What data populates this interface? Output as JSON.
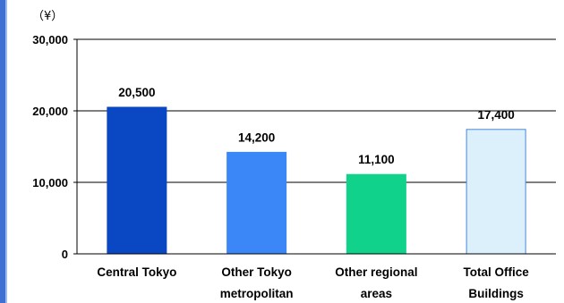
{
  "chart_data": {
    "type": "bar",
    "unit_label": "（¥）",
    "categories": [
      [
        "Central Tokyo"
      ],
      [
        "Other Tokyo",
        "metropolitan"
      ],
      [
        "Other regional",
        "areas"
      ],
      [
        "Total Office",
        "Buildings"
      ]
    ],
    "values": [
      20500,
      14200,
      11100,
      17400
    ],
    "data_labels": [
      "20,500",
      "14,200",
      "11,100",
      "17,400"
    ],
    "bar_colors": [
      "#0a47c2",
      "#3b87f8",
      "#10d28a",
      "#dcf0fb"
    ],
    "ylim": [
      0,
      30000
    ],
    "yticks": [
      0,
      10000,
      20000,
      30000
    ],
    "ytick_labels": [
      "0",
      "10,000",
      "20,000",
      "30,000"
    ],
    "grid": true,
    "legend": "none"
  }
}
